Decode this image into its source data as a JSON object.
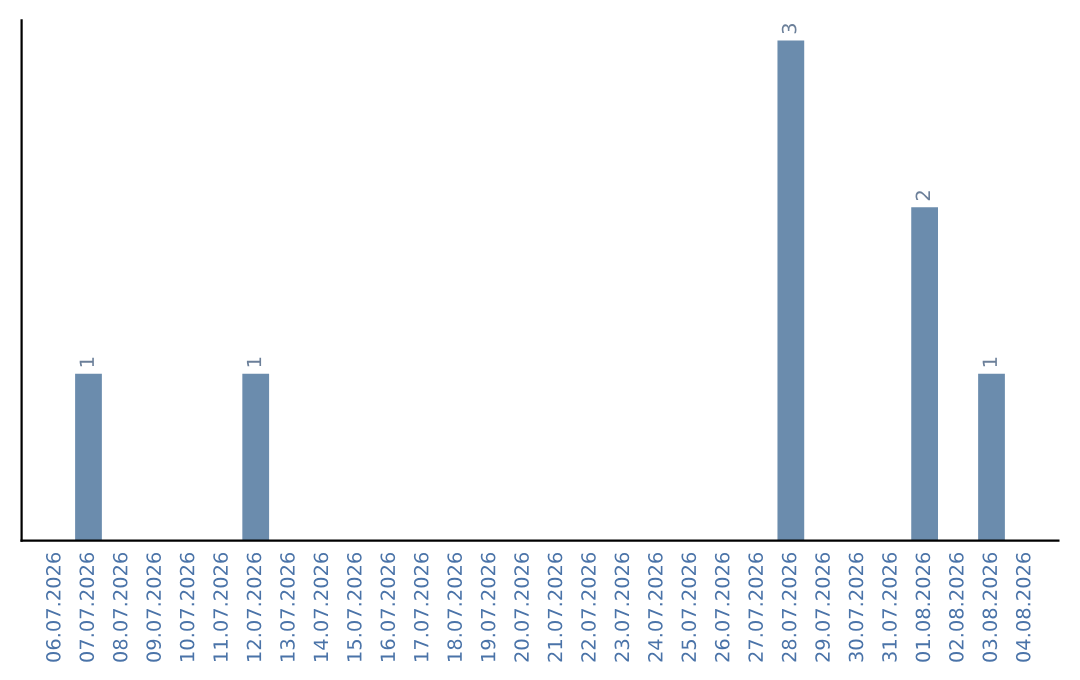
{
  "chart_data": {
    "type": "bar",
    "categories": [
      "06.07.2026",
      "07.07.2026",
      "08.07.2026",
      "09.07.2026",
      "10.07.2026",
      "11.07.2026",
      "12.07.2026",
      "13.07.2026",
      "14.07.2026",
      "15.07.2026",
      "16.07.2026",
      "17.07.2026",
      "18.07.2026",
      "19.07.2026",
      "20.07.2026",
      "21.07.2026",
      "22.07.2026",
      "23.07.2026",
      "24.07.2026",
      "25.07.2026",
      "26.07.2026",
      "27.07.2026",
      "28.07.2026",
      "29.07.2026",
      "30.07.2026",
      "31.07.2026",
      "01.08.2026",
      "02.08.2026",
      "03.08.2026",
      "04.08.2026"
    ],
    "values": [
      0,
      1,
      0,
      0,
      0,
      0,
      1,
      0,
      0,
      0,
      0,
      0,
      0,
      0,
      0,
      0,
      0,
      0,
      0,
      0,
      0,
      0,
      3,
      0,
      0,
      0,
      2,
      0,
      1,
      0
    ],
    "value_labels": [
      null,
      "1",
      null,
      null,
      null,
      null,
      "1",
      null,
      null,
      null,
      null,
      null,
      null,
      null,
      null,
      null,
      null,
      null,
      null,
      null,
      null,
      null,
      "3",
      null,
      null,
      null,
      "2",
      null,
      "1",
      null
    ],
    "color": "#6b8cad",
    "tick_labels": "x",
    "grid": false,
    "legend": false
  }
}
